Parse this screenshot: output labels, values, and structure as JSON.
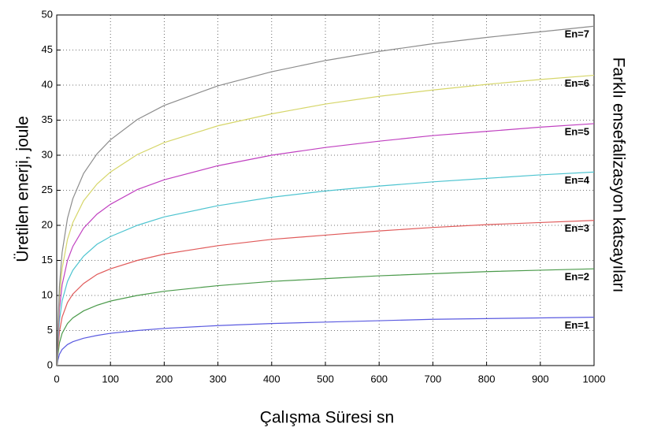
{
  "chart_data": {
    "type": "line",
    "x_label": "Çalışma Süresi sn",
    "y_label": "Üretilen enerji, joule",
    "right_label": "Farklı ensefalizasyon katsayıları",
    "x": [
      1,
      2,
      5,
      10,
      20,
      30,
      50,
      75,
      100,
      150,
      200,
      300,
      400,
      500,
      600,
      700,
      800,
      900,
      1000
    ],
    "series": [
      {
        "name": "En=1",
        "color": "#5a5ae0",
        "values": [
          0,
          0.7,
          1.6,
          2.3,
          3.0,
          3.4,
          3.9,
          4.3,
          4.6,
          5.0,
          5.3,
          5.7,
          6.0,
          6.2,
          6.4,
          6.6,
          6.7,
          6.8,
          6.9
        ]
      },
      {
        "name": "En=2",
        "color": "#4a9a4a",
        "values": [
          0,
          1.4,
          3.2,
          4.6,
          6.0,
          6.8,
          7.8,
          8.6,
          9.2,
          10.0,
          10.6,
          11.4,
          12.0,
          12.4,
          12.8,
          13.1,
          13.4,
          13.6,
          13.8
        ]
      },
      {
        "name": "En=3",
        "color": "#e05a5a",
        "values": [
          0,
          2.1,
          4.8,
          6.9,
          9.0,
          10.2,
          11.7,
          13.0,
          13.8,
          15.0,
          15.9,
          17.1,
          18.0,
          18.6,
          19.2,
          19.7,
          20.1,
          20.4,
          20.7
        ]
      },
      {
        "name": "En=4",
        "color": "#4ec4d0",
        "values": [
          0,
          2.8,
          6.4,
          9.2,
          12.0,
          13.6,
          15.6,
          17.3,
          18.4,
          20.0,
          21.2,
          22.8,
          24.0,
          24.9,
          25.6,
          26.2,
          26.7,
          27.2,
          27.6
        ]
      },
      {
        "name": "En=5",
        "color": "#c040c0",
        "values": [
          0,
          3.5,
          8.0,
          11.5,
          15.0,
          17.0,
          19.6,
          21.6,
          23.0,
          25.1,
          26.5,
          28.5,
          30.0,
          31.1,
          32.0,
          32.8,
          33.4,
          34.0,
          34.5
        ]
      },
      {
        "name": "En=6",
        "color": "#d6d66a",
        "values": [
          0,
          4.2,
          9.7,
          13.8,
          18.0,
          20.4,
          23.5,
          25.9,
          27.6,
          30.1,
          31.8,
          34.2,
          35.9,
          37.3,
          38.4,
          39.3,
          40.1,
          40.8,
          41.4
        ]
      },
      {
        "name": "En=7",
        "color": "#8c8c8c",
        "values": [
          0,
          4.9,
          11.3,
          16.1,
          21.0,
          23.8,
          27.4,
          30.2,
          32.2,
          35.1,
          37.1,
          39.9,
          41.9,
          43.5,
          44.8,
          45.9,
          46.8,
          47.6,
          48.4
        ]
      }
    ],
    "xlim": [
      0,
      1000
    ],
    "xticks": [
      0,
      100,
      200,
      300,
      400,
      500,
      600,
      700,
      800,
      900,
      1000
    ],
    "ylim": [
      0,
      50
    ],
    "yticks": [
      0,
      5,
      10,
      15,
      20,
      25,
      30,
      35,
      40,
      45,
      50
    ],
    "grid": true
  }
}
